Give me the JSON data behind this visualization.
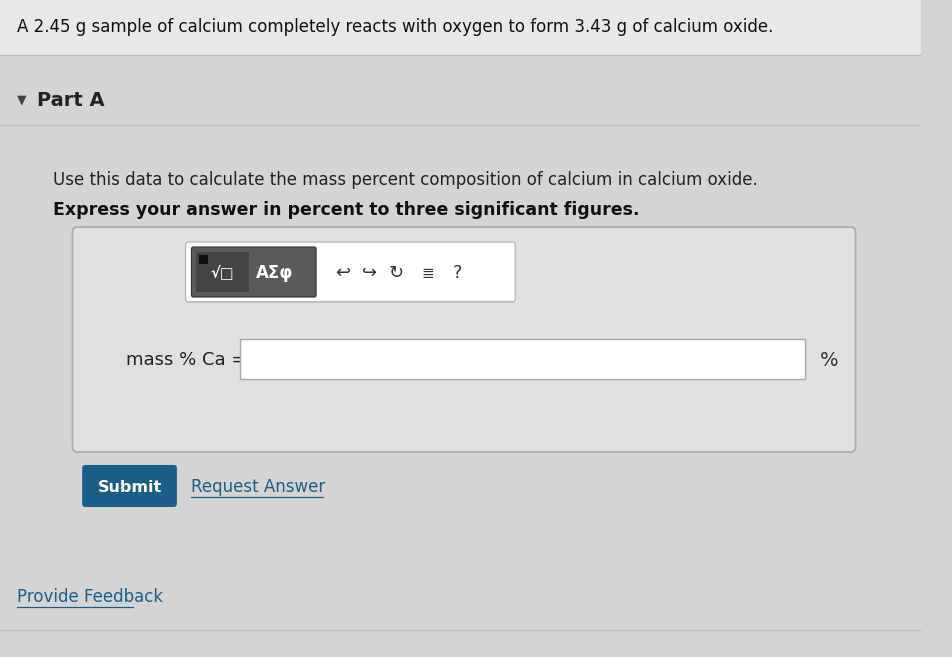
{
  "bg_color": "#d4d4d4",
  "header_bg": "#e8e8e8",
  "header_text": "A 2.45 g sample of calcium completely reacts with oxygen to form 3.43 g of calcium oxide.",
  "header_text_color": "#111111",
  "part_label": "Part A",
  "instruction1": "Use this data to calculate the mass percent composition of calcium in calcium oxide.",
  "instruction2": "Express your answer in percent to three significant figures.",
  "input_label": "mass % Ca =",
  "unit_label": "%",
  "submit_text": "Submit",
  "submit_bg": "#1a5f8a",
  "submit_text_color": "#ffffff",
  "request_answer_text": "Request Answer",
  "request_answer_color": "#1a5f8a",
  "provide_feedback_text": "Provide Feedback",
  "provide_feedback_color": "#1a5f8a",
  "outer_box_bg": "#e0e0e0",
  "toolbar_dark_bg": "#5a5a5a",
  "toolbar_btn_bg": "#444444",
  "separator_color": "#bbbbbb",
  "link_underline_color": "#1a5f8a"
}
